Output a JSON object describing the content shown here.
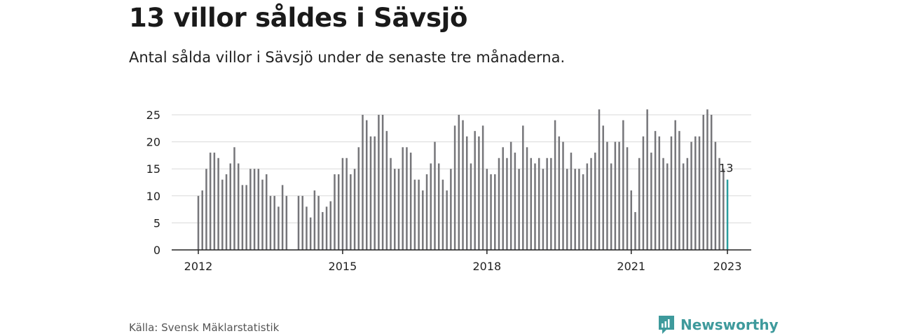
{
  "header": {
    "title": "13 villor såldes i Sävsjö",
    "subtitle": "Antal sålda villor i Sävsjö under de senaste tre månaderna."
  },
  "footer": {
    "source": "Källa: Svensk Mäklarstatistik",
    "brand": "Newsworthy",
    "brand_icon": "newsworthy-logo-icon"
  },
  "colors": {
    "bar": "#76767a",
    "highlight": "#2a9d9e",
    "grid": "#d9d9d9",
    "axis": "#222222"
  },
  "chart_data": {
    "type": "bar",
    "title": "",
    "xlabel": "",
    "ylabel": "",
    "ylim": [
      0,
      25
    ],
    "yticks": [
      "0",
      "5",
      "10",
      "15",
      "20",
      "25"
    ],
    "xticks": [
      "2012",
      "2015",
      "2018",
      "2021",
      "2023"
    ],
    "start": "2012-01",
    "frequency": "monthly",
    "grid": true,
    "highlight_label": "13",
    "values": [
      10,
      11,
      15,
      18,
      18,
      17,
      13,
      14,
      16,
      19,
      16,
      12,
      12,
      15,
      15,
      15,
      13,
      14,
      10,
      10,
      8,
      12,
      10,
      null,
      null,
      10,
      10,
      8,
      6,
      11,
      10,
      7,
      8,
      9,
      14,
      14,
      17,
      17,
      14,
      15,
      19,
      25,
      24,
      21,
      21,
      25,
      25,
      22,
      17,
      15,
      15,
      19,
      19,
      18,
      13,
      13,
      11,
      14,
      16,
      20,
      16,
      13,
      11,
      15,
      23,
      25,
      24,
      21,
      16,
      22,
      21,
      23,
      15,
      14,
      14,
      17,
      19,
      17,
      20,
      18,
      15,
      23,
      19,
      17,
      16,
      17,
      15,
      17,
      17,
      24,
      21,
      20,
      15,
      18,
      15,
      15,
      14,
      16,
      17,
      18,
      26,
      23,
      20,
      16,
      20,
      20,
      24,
      19,
      11,
      7,
      17,
      21,
      26,
      18,
      22,
      21,
      17,
      16,
      21,
      24,
      22,
      16,
      17,
      20,
      21,
      21,
      25,
      26,
      25,
      20,
      17,
      15,
      13
    ]
  }
}
